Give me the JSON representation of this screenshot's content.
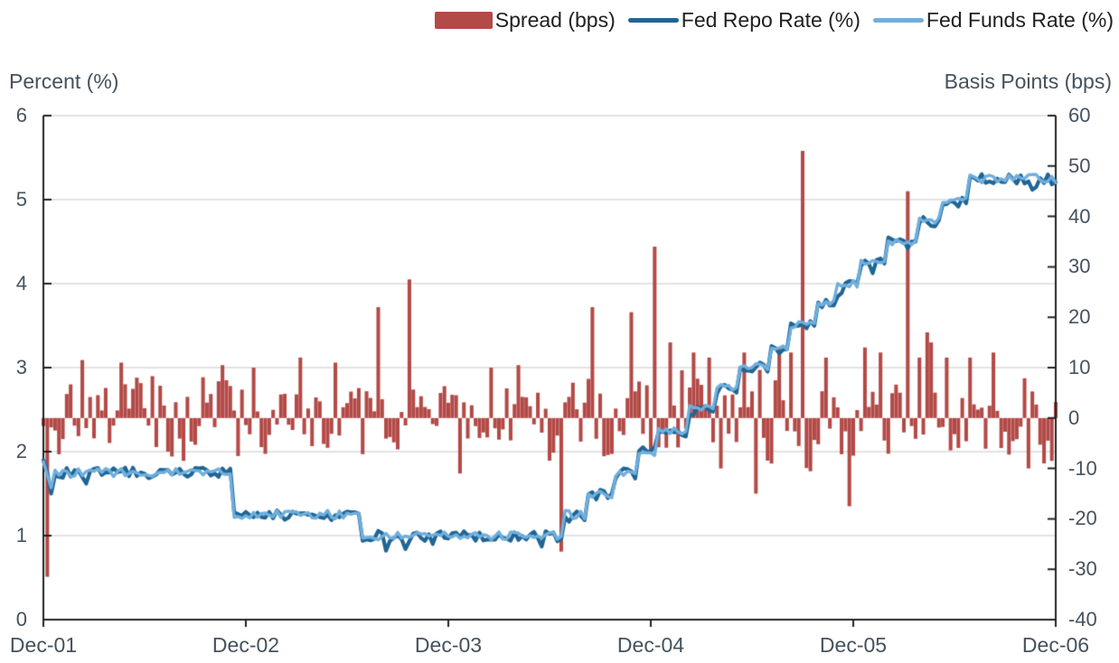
{
  "legend": {
    "items": [
      {
        "label": "Spread (bps)",
        "type": "bar",
        "color": "#b34a47"
      },
      {
        "label": "Fed Repo Rate (%)",
        "type": "line",
        "color": "#206594"
      },
      {
        "label": "Fed Funds Rate (%)",
        "type": "line",
        "color": "#6fafdd"
      }
    ]
  },
  "colors": {
    "spread_bar": "#b34a47",
    "repo_line": "#206594",
    "funds_line": "#6fafdd",
    "gridline": "#d9d9d9",
    "axis_line": "#222222",
    "axis_text": "#45525e",
    "legend_text": "#1f1f1f"
  },
  "chart_data": {
    "type": "combo",
    "series": [
      {
        "name": "Spread (bps)",
        "type": "bar",
        "axis": "right",
        "unit": "bps"
      },
      {
        "name": "Fed Repo Rate (%)",
        "type": "line",
        "axis": "left",
        "unit": "%"
      },
      {
        "name": "Fed Funds Rate (%)",
        "type": "line",
        "axis": "left",
        "unit": "%"
      }
    ],
    "left_axis": {
      "title": "Percent (%)",
      "min": 0,
      "max": 6,
      "ticks": [
        6,
        5,
        4,
        3,
        2,
        1,
        0
      ]
    },
    "right_axis": {
      "title": "Basis Points (bps)",
      "min": -40,
      "max": 60,
      "ticks": [
        60,
        50,
        40,
        30,
        20,
        10,
        0,
        -10,
        -20,
        -30,
        -40
      ]
    },
    "x_axis": {
      "labels": [
        "Dec-01",
        "Dec-02",
        "Dec-03",
        "Dec-04",
        "Dec-05",
        "Dec-06"
      ],
      "months_span": 60,
      "grid": false
    },
    "grid": {
      "horizontal_at_left_ticks": true,
      "vertical": false
    },
    "legend_position": "top-right",
    "rate_step_path_pct": [
      [
        0.0,
        1.75
      ],
      [
        11.2,
        1.25
      ],
      [
        18.8,
        1.0
      ],
      [
        30.9,
        1.25
      ],
      [
        32.3,
        1.5
      ],
      [
        33.7,
        1.75
      ],
      [
        35.3,
        2.0
      ],
      [
        36.4,
        2.25
      ],
      [
        38.1,
        2.5
      ],
      [
        39.7,
        2.75
      ],
      [
        41.1,
        3.0
      ],
      [
        43.0,
        3.25
      ],
      [
        44.3,
        3.5
      ],
      [
        45.7,
        3.75
      ],
      [
        47.0,
        4.0
      ],
      [
        48.4,
        4.25
      ],
      [
        50.0,
        4.5
      ],
      [
        51.9,
        4.75
      ],
      [
        53.3,
        5.0
      ],
      [
        54.9,
        5.25
      ]
    ],
    "rate_end_pct": 5.25,
    "spread_typical_band_bps": [
      -8,
      10
    ],
    "spread_spikes_bps": [
      [
        0.25,
        -31.5
      ],
      [
        2.3,
        11.5
      ],
      [
        4.6,
        11
      ],
      [
        8.2,
        -8.5
      ],
      [
        10.5,
        10.5
      ],
      [
        12.5,
        10
      ],
      [
        15.2,
        12
      ],
      [
        17.3,
        11
      ],
      [
        19.9,
        22
      ],
      [
        21.6,
        27.5
      ],
      [
        24.6,
        -11
      ],
      [
        26.5,
        10
      ],
      [
        28.2,
        10.5
      ],
      [
        30.8,
        -26.5
      ],
      [
        32.6,
        22
      ],
      [
        34.9,
        21
      ],
      [
        36.2,
        34
      ],
      [
        37.2,
        15
      ],
      [
        38.5,
        13
      ],
      [
        39.4,
        12
      ],
      [
        40.2,
        -10
      ],
      [
        41.5,
        13
      ],
      [
        42.3,
        -15
      ],
      [
        43.5,
        14
      ],
      [
        44.3,
        13
      ],
      [
        45.1,
        53
      ],
      [
        46.4,
        12
      ],
      [
        47.8,
        -17.5
      ],
      [
        48.8,
        14
      ],
      [
        49.6,
        13
      ],
      [
        51.2,
        45
      ],
      [
        51.9,
        12
      ],
      [
        52.3,
        17
      ],
      [
        52.7,
        15
      ],
      [
        53.6,
        12
      ],
      [
        55.0,
        12
      ],
      [
        56.3,
        13
      ],
      [
        58.3,
        -10
      ],
      [
        59.3,
        -9
      ],
      [
        59.8,
        -8.5
      ]
    ],
    "noise_profile": [
      [
        0,
        1.0
      ],
      [
        12,
        0.85
      ],
      [
        19,
        0.8
      ],
      [
        30,
        1.1
      ],
      [
        36,
        1.3
      ],
      [
        48,
        1.05
      ],
      [
        56,
        0.95
      ]
    ],
    "line_events": [
      {
        "m": 0.0,
        "funds": 1.88,
        "repo": 1.9
      },
      {
        "m": 0.35,
        "funds": 1.57,
        "repo": 1.5
      },
      {
        "m": 0.8,
        "funds": 1.78
      },
      {
        "m": 20.2,
        "repo": 0.82
      },
      {
        "m": 21.5,
        "repo": 0.84
      },
      {
        "m": 23.1,
        "repo": 0.9
      },
      {
        "m": 29.6,
        "repo": 0.87
      }
    ],
    "weekly_points": 261,
    "seed": 7
  }
}
